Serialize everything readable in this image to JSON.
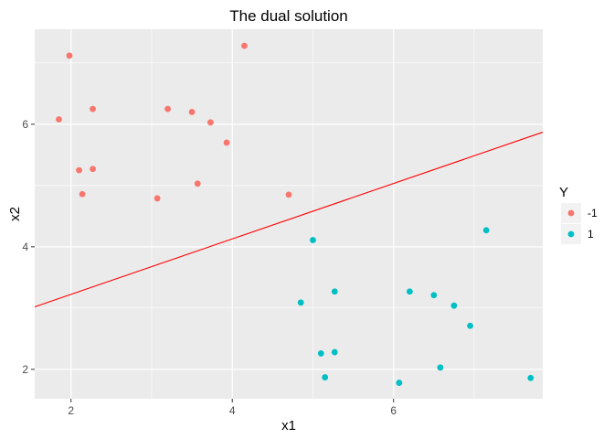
{
  "chart_data": {
    "type": "scatter",
    "title": "The dual solution",
    "xlabel": "x1",
    "ylabel": "x2",
    "xlim": [
      1.55,
      7.85
    ],
    "ylim": [
      1.52,
      7.55
    ],
    "x_ticks": [
      2,
      4,
      6
    ],
    "y_ticks": [
      2,
      4,
      6
    ],
    "x_tick_labels": [
      "2",
      "4",
      "6"
    ],
    "y_tick_labels": [
      "2",
      "4",
      "6"
    ],
    "grid": true,
    "background": "#ebebeb",
    "legend": {
      "title": "Y",
      "position": "right",
      "entries": [
        {
          "label": "-1",
          "color": "#f8766d"
        },
        {
          "label": "1",
          "color": "#00bfc4"
        }
      ]
    },
    "series": [
      {
        "name": "-1",
        "color": "#f8766d",
        "points": [
          [
            1.98,
            7.12
          ],
          [
            1.85,
            6.08
          ],
          [
            2.27,
            6.25
          ],
          [
            2.1,
            5.25
          ],
          [
            2.27,
            5.27
          ],
          [
            2.14,
            4.86
          ],
          [
            3.2,
            6.25
          ],
          [
            3.5,
            6.2
          ],
          [
            3.73,
            6.03
          ],
          [
            3.93,
            5.7
          ],
          [
            3.57,
            5.03
          ],
          [
            3.07,
            4.79
          ],
          [
            4.15,
            7.28
          ],
          [
            4.7,
            4.85
          ]
        ]
      },
      {
        "name": "1",
        "color": "#00bfc4",
        "points": [
          [
            5.0,
            4.11
          ],
          [
            4.85,
            3.09
          ],
          [
            5.27,
            3.27
          ],
          [
            5.1,
            2.26
          ],
          [
            5.27,
            2.28
          ],
          [
            5.15,
            1.87
          ],
          [
            6.2,
            3.27
          ],
          [
            6.5,
            3.21
          ],
          [
            6.75,
            3.04
          ],
          [
            6.95,
            2.71
          ],
          [
            6.58,
            2.03
          ],
          [
            6.07,
            1.78
          ],
          [
            7.15,
            4.27
          ],
          [
            7.7,
            1.86
          ]
        ]
      }
    ],
    "lines": [
      {
        "color": "#ff0000",
        "x": [
          1.55,
          7.85
        ],
        "y": [
          3.02,
          5.87
        ]
      }
    ]
  }
}
